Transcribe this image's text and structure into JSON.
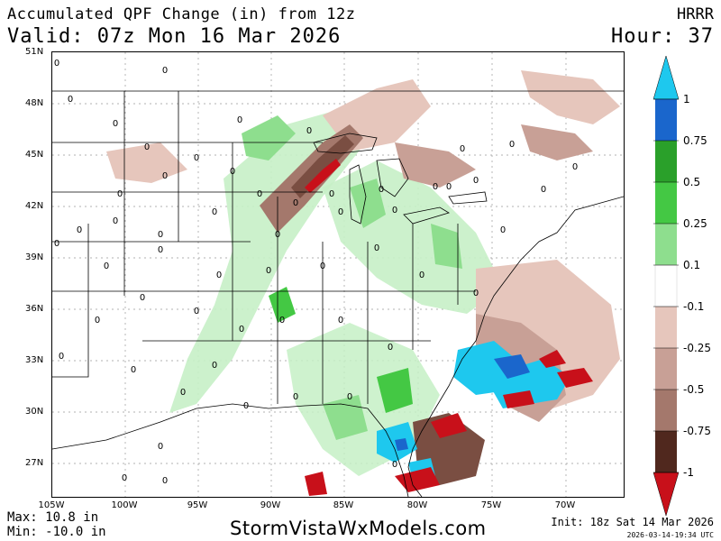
{
  "header": {
    "title": "Accumulated QPF Change (in) from 12z",
    "valid": "Valid: 07z Mon 16 Mar 2026",
    "model": "HRRR",
    "hour": "Hour: 37"
  },
  "map": {
    "lat_labels": [
      "51N",
      "48N",
      "45N",
      "42N",
      "39N",
      "36N",
      "33N",
      "30N",
      "27N"
    ],
    "lon_labels": [
      "105W",
      "100W",
      "95W",
      "90W",
      "85W",
      "80W",
      "75W",
      "70W"
    ],
    "station_value_label": "0"
  },
  "colorbar": {
    "labels": [
      "1",
      "0.75",
      "0.5",
      "0.25",
      "0.1",
      "-0.1",
      "-0.25",
      "-0.5",
      "-0.75",
      "-1"
    ],
    "colors": {
      "cyan": "#1ec8ee",
      "blue": "#1a66cc",
      "green_dark": "#2aa02a",
      "green": "#44c844",
      "green_light": "#8ede8e",
      "green_pale": "#c6f0c6",
      "white": "#ffffff",
      "pink": "#e6c6bc",
      "pink_brown": "#c8a096",
      "brown": "#a4786c",
      "dark_brown": "#7a4e42",
      "very_dark_brown": "#50281e",
      "red": "#c8101a"
    }
  },
  "footer": {
    "max": "Max: 10.8 in",
    "min": "Min: -10.0 in",
    "website": "StormVistaWxModels.com",
    "init": "Init: 18z Sat 14 Mar 2026",
    "timestamp": "2026-03-14-19:34 UTC"
  }
}
